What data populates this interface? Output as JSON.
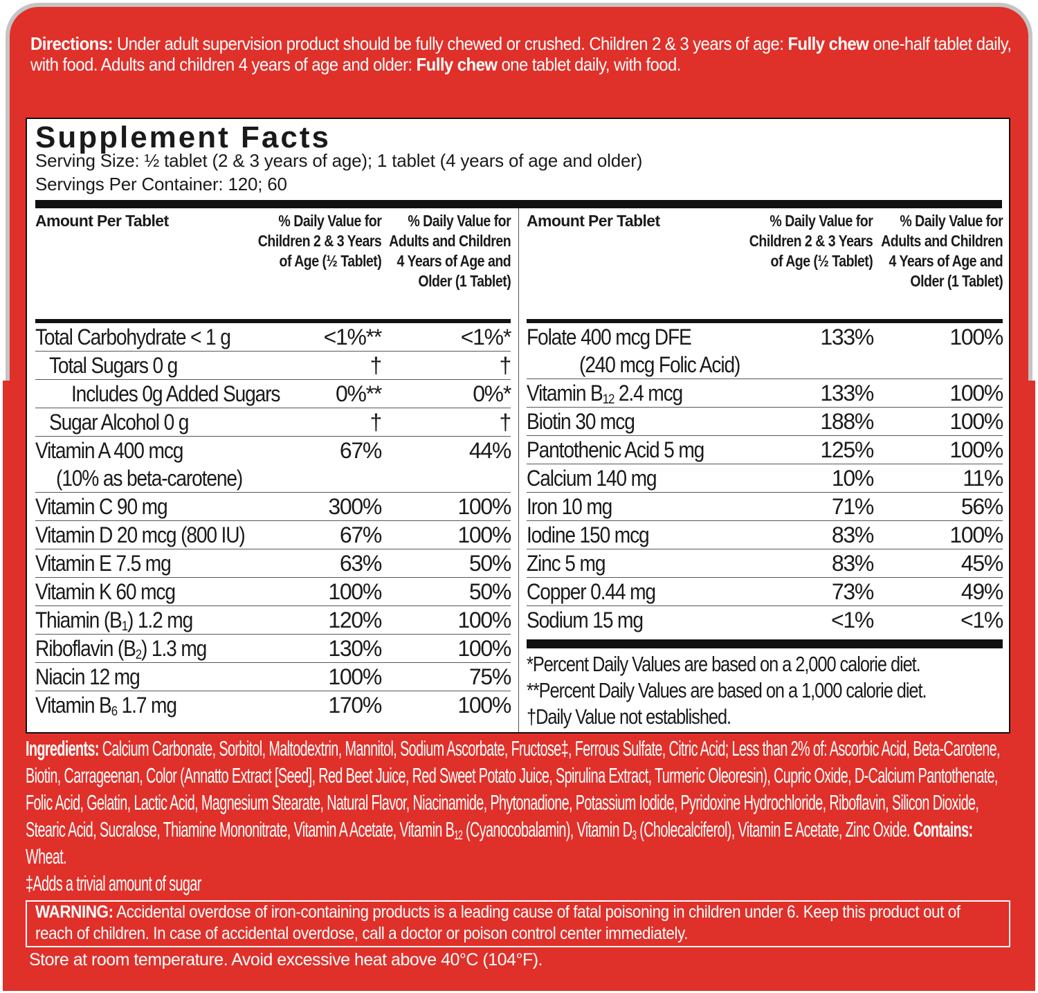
{
  "colors": {
    "label_red": "#e0302a",
    "border_gray": "#c4c4c4",
    "text_dark": "#1a1a1a"
  },
  "directions": [
    {
      "text": "Directions:",
      "bold": true
    },
    {
      "text": " Under adult supervision product should be fully chewed or crushed. Children 2 & 3 years of age: ",
      "bold": false
    },
    {
      "text": "Fully chew",
      "bold": true
    },
    {
      "text": " one-half tablet daily, with food. Adults and children 4 years of age and older: ",
      "bold": false
    },
    {
      "text": "Fully chew",
      "bold": true
    },
    {
      "text": " one tablet daily, with food.",
      "bold": false
    }
  ],
  "facts": {
    "title": "Supplement Facts",
    "serving_size": "Serving Size:  ½ tablet (2 & 3 years of age); 1 tablet (4 years of age and older)",
    "servings_per_container": "Servings Per Container:  120; 60",
    "headers": {
      "amount": "Amount Per Tablet",
      "children": "% Daily Value for Children 2 & 3 Years of Age (½ Tablet)",
      "adults": "% Daily Value for Adults and Children 4 Years of Age and Older (1 Tablet)"
    },
    "left_rows": [
      {
        "name": "Total Carbohydrate < 1 g",
        "children": "<1%**",
        "adults": "<1%*",
        "indent": 0
      },
      {
        "name": "Total Sugars 0 g",
        "children": "†",
        "adults": "†",
        "indent": 1
      },
      {
        "name": "Includes 0g Added Sugars",
        "children": "0%**",
        "adults": "0%*",
        "indent": 2
      },
      {
        "name": "Sugar Alcohol 0 g",
        "children": "†",
        "adults": "†",
        "indent": 1
      },
      {
        "name": "Vitamin A 400 mcg",
        "extra": "(10% as beta-carotene)",
        "children": "67%",
        "adults": "44%",
        "indent": 0
      },
      {
        "name": "Vitamin C 90 mg",
        "children": "300%",
        "adults": "100%",
        "indent": 0
      },
      {
        "name": "Vitamin D 20 mcg (800 IU)",
        "children": "67%",
        "adults": "100%",
        "indent": 0
      },
      {
        "name": "Vitamin E 7.5 mg",
        "children": "63%",
        "adults": "50%",
        "indent": 0
      },
      {
        "name": "Vitamin K 60 mcg",
        "children": "100%",
        "adults": "50%",
        "indent": 0
      },
      {
        "name": "Thiamin (B",
        "sub": "1",
        "after": ") 1.2 mg",
        "children": "120%",
        "adults": "100%",
        "indent": 0
      },
      {
        "name": "Riboflavin (B",
        "sub": "2",
        "after": ") 1.3 mg",
        "children": "130%",
        "adults": "100%",
        "indent": 0
      },
      {
        "name": "Niacin 12 mg",
        "children": "100%",
        "adults": "75%",
        "indent": 0
      },
      {
        "name": "Vitamin B",
        "sub": "6",
        "after": " 1.7 mg",
        "children": "170%",
        "adults": "100%",
        "indent": 0
      }
    ],
    "right_rows": [
      {
        "name": "Folate 400 mcg DFE",
        "extra": "(240 mcg Folic Acid)",
        "children": "133%",
        "adults": "100%",
        "indent": 0
      },
      {
        "name": "Vitamin B",
        "sub": "12",
        "after": " 2.4 mcg",
        "children": "133%",
        "adults": "100%",
        "indent": 0
      },
      {
        "name": "Biotin 30 mcg",
        "children": "188%",
        "adults": "100%",
        "indent": 0
      },
      {
        "name": "Pantothenic Acid 5 mg",
        "children": "125%",
        "adults": "100%",
        "indent": 0
      },
      {
        "name": "Calcium 140 mg",
        "children": "10%",
        "adults": "11%",
        "indent": 0
      },
      {
        "name": "Iron 10 mg",
        "children": "71%",
        "adults": "56%",
        "indent": 0
      },
      {
        "name": "Iodine 150 mcg",
        "children": "83%",
        "adults": "100%",
        "indent": 0
      },
      {
        "name": "Zinc 5 mg",
        "children": "83%",
        "adults": "45%",
        "indent": 0
      },
      {
        "name": "Copper 0.44 mg",
        "children": "73%",
        "adults": "49%",
        "indent": 0
      },
      {
        "name": "Sodium 15 mg",
        "children": "<1%",
        "adults": "<1%",
        "indent": 0
      }
    ],
    "footnotes": [
      "*Percent Daily Values are based on a 2,000 calorie diet.",
      "**Percent Daily Values are based on a 1,000 calorie diet.",
      "†Daily Value not established."
    ]
  },
  "ingredients": {
    "label": "Ingredients:",
    "text1": "  Calcium Carbonate, Sorbitol, Maltodextrin, Mannitol, Sodium Ascorbate, Fructose‡, Ferrous Sulfate, Citric Acid; Less than 2% of: Ascorbic Acid, Beta-Carotene, Biotin, Carrageenan, Color (Annatto Extract [Seed], Red Beet Juice, Red Sweet Potato Juice, Spirulina Extract, Turmeric Oleoresin), Cupric Oxide, D-Calcium Pantothenate, Folic Acid, Gelatin, Lactic Acid, Magnesium Stearate, Natural Flavor, Niacinamide, Phytonadione, Potassium Iodide, Pyridoxine Hydrochloride, Riboflavin, Silicon Dioxide, Stearic Acid, Sucralose, Thiamine Mononitrate, Vitamin A Acetate, Vitamin B",
    "sub1": "12",
    "text2": " (Cyanocobalamin), Vitamin D",
    "sub2": "3",
    "text3": " (Cholecalciferol), Vitamin E Acetate, Zinc Oxide.  ",
    "contains_label": "Contains:",
    "contains_value": " Wheat.",
    "footnote": "‡Adds a trivial amount of sugar"
  },
  "warning": {
    "label": "WARNING:",
    "text": "  Accidental overdose of iron-containing products is a leading cause of fatal poisoning in children under 6.  Keep this product out of reach of children.  In case of accidental overdose, call a doctor or poison control center immediately."
  },
  "storage": "Store at room temperature. Avoid excessive heat above 40°C (104°F)."
}
